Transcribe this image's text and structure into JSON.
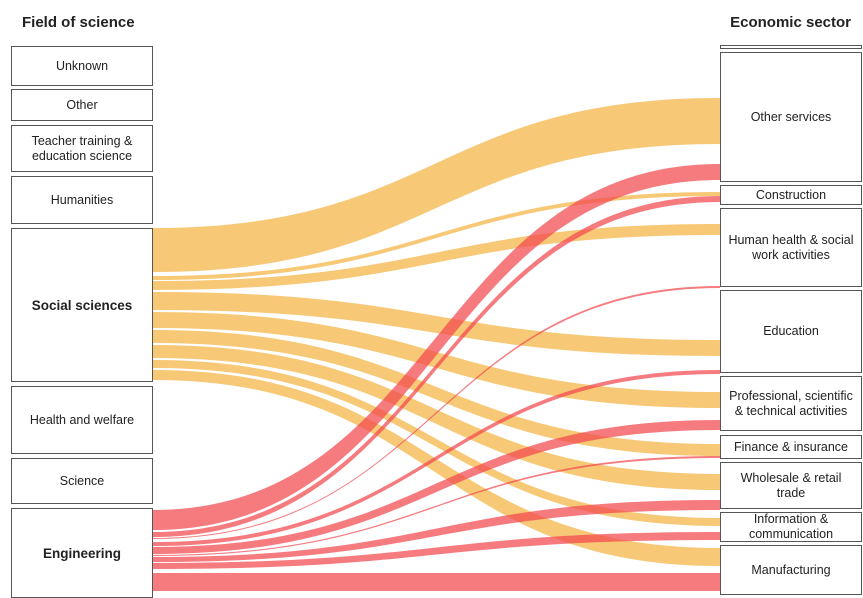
{
  "headers": {
    "left": "Field of science",
    "right": "Economic sector"
  },
  "colors": {
    "social_sciences_flow": "#f5bc58",
    "engineering_flow": "#f2484e",
    "node_border": "#555555"
  },
  "left_nodes": [
    {
      "id": "unknown",
      "label": "Unknown"
    },
    {
      "id": "other",
      "label": "Other"
    },
    {
      "id": "teacher",
      "label": "Teacher training & education science"
    },
    {
      "id": "humanities",
      "label": "Humanities"
    },
    {
      "id": "social",
      "label": "Social sciences",
      "bold": true
    },
    {
      "id": "health",
      "label": "Health and welfare"
    },
    {
      "id": "science",
      "label": "Science"
    },
    {
      "id": "engineering",
      "label": "Engineering",
      "bold": true
    }
  ],
  "right_nodes": [
    {
      "id": "top",
      "label": ""
    },
    {
      "id": "other_services",
      "label": "Other services"
    },
    {
      "id": "construction",
      "label": "Construction"
    },
    {
      "id": "human_health",
      "label": "Human health & social work activities"
    },
    {
      "id": "education",
      "label": "Education"
    },
    {
      "id": "professional",
      "label": "Professional, scientific & technical activities"
    },
    {
      "id": "finance",
      "label": "Finance & insurance"
    },
    {
      "id": "wholesale",
      "label": "Wholesale & retail trade"
    },
    {
      "id": "information",
      "label": "Information & communication"
    },
    {
      "id": "manufacturing",
      "label": "Manufacturing"
    }
  ],
  "flows": [
    {
      "source": "social",
      "target": "other_services",
      "group": "social_sciences_flow"
    },
    {
      "source": "social",
      "target": "construction",
      "group": "social_sciences_flow"
    },
    {
      "source": "social",
      "target": "human_health",
      "group": "social_sciences_flow"
    },
    {
      "source": "social",
      "target": "education",
      "group": "social_sciences_flow"
    },
    {
      "source": "social",
      "target": "professional",
      "group": "social_sciences_flow"
    },
    {
      "source": "social",
      "target": "finance",
      "group": "social_sciences_flow"
    },
    {
      "source": "social",
      "target": "wholesale",
      "group": "social_sciences_flow"
    },
    {
      "source": "social",
      "target": "information",
      "group": "social_sciences_flow"
    },
    {
      "source": "social",
      "target": "manufacturing",
      "group": "social_sciences_flow"
    },
    {
      "source": "engineering",
      "target": "other_services",
      "group": "engineering_flow"
    },
    {
      "source": "engineering",
      "target": "construction",
      "group": "engineering_flow"
    },
    {
      "source": "engineering",
      "target": "human_health",
      "group": "engineering_flow"
    },
    {
      "source": "engineering",
      "target": "education",
      "group": "engineering_flow"
    },
    {
      "source": "engineering",
      "target": "professional",
      "group": "engineering_flow"
    },
    {
      "source": "engineering",
      "target": "finance",
      "group": "engineering_flow"
    },
    {
      "source": "engineering",
      "target": "wholesale",
      "group": "engineering_flow"
    },
    {
      "source": "engineering",
      "target": "information",
      "group": "engineering_flow"
    },
    {
      "source": "engineering",
      "target": "manufacturing",
      "group": "engineering_flow"
    }
  ]
}
